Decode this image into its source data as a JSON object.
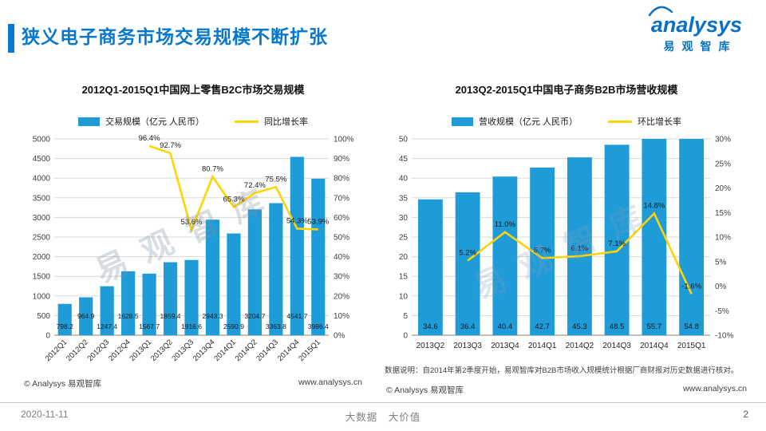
{
  "page": {
    "title": "狭义电子商务市场交易规模不断扩张",
    "logo": {
      "brand": "analysys",
      "brand_cn": "易观智库"
    },
    "watermark": "易观智库",
    "footer": {
      "date": "2020-11-11",
      "slogan": "大数据　大价值",
      "page_number": "2"
    }
  },
  "colors": {
    "accent_blue": "#0778cc",
    "logo_blue": "#0a72c0",
    "bar_blue": "#1f9bd8",
    "line_yellow": "#ffd400",
    "grid_gray": "#d9d9d9",
    "axis_gray": "#808080",
    "text_dark": "#1a1a1a",
    "footer_gray": "#808080"
  },
  "chart_data": [
    {
      "type": "combo-bar-line",
      "title": "2012Q1-2015Q1中国网上零售B2C市场交易规模",
      "categories": [
        "2012Q1",
        "2012Q2",
        "2012Q3",
        "2012Q4",
        "2013Q1",
        "2013Q2",
        "2013Q3",
        "2013Q4",
        "2014Q1",
        "2014Q2",
        "2014Q3",
        "2014Q4",
        "2015Q1"
      ],
      "series": [
        {
          "name": "交易规模（亿元 人民币）",
          "type": "bar",
          "axis": "left",
          "values": [
            798.2,
            964.9,
            1247.4,
            1628.5,
            1567.7,
            1859.4,
            1916.6,
            2943.3,
            2590.9,
            3204.7,
            3363.8,
            4541.7,
            3986.4
          ]
        },
        {
          "name": "同比增长率",
          "type": "line",
          "axis": "right",
          "values": [
            null,
            null,
            null,
            null,
            96.4,
            92.7,
            53.6,
            80.7,
            65.3,
            72.4,
            75.5,
            54.3,
            53.9
          ]
        }
      ],
      "left_axis": {
        "min": 0,
        "max": 5000,
        "step": 500,
        "suffix": ""
      },
      "right_axis": {
        "min": 0,
        "max": 100,
        "step": 10,
        "suffix": "%"
      },
      "grid": true,
      "legend_position": "top",
      "x_label_rotate": -45,
      "bar_label_alternate": true,
      "copyright": "© Analysys 易观智库",
      "website": "www.analysys.cn"
    },
    {
      "type": "combo-bar-line",
      "title": "2013Q2-2015Q1中国电子商务B2B市场营收规模",
      "categories": [
        "2013Q2",
        "2013Q3",
        "2013Q4",
        "2014Q1",
        "2014Q2",
        "2014Q3",
        "2014Q4",
        "2015Q1"
      ],
      "series": [
        {
          "name": "营收规模（亿元 人民币）",
          "type": "bar",
          "axis": "left",
          "values": [
            34.6,
            36.4,
            40.4,
            42.7,
            45.3,
            48.5,
            55.7,
            54.8
          ]
        },
        {
          "name": "环比增长率",
          "type": "line",
          "axis": "right",
          "values": [
            null,
            5.2,
            11.0,
            5.7,
            6.1,
            7.1,
            14.8,
            -1.6
          ]
        }
      ],
      "left_axis": {
        "min": 0,
        "max": 50,
        "step": 5,
        "suffix": ""
      },
      "right_axis": {
        "min": -10,
        "max": 30,
        "step": 5,
        "suffix": "%"
      },
      "grid": true,
      "legend_position": "top",
      "x_label_rotate": 0,
      "bar_label_alternate": false,
      "note": "数据说明：自2014年第2季度开始，易观智库对B2B市场收入规模统计根据厂商财报对历史数据进行核对。",
      "copyright": "© Analysys 易观智库",
      "website": "www.analysys.cn"
    }
  ]
}
